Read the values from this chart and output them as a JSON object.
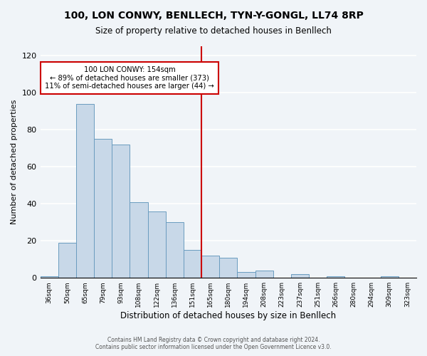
{
  "title": "100, LON CONWY, BENLLECH, TYN-Y-GONGL, LL74 8RP",
  "subtitle": "Size of property relative to detached houses in Benllech",
  "xlabel": "Distribution of detached houses by size in Benllech",
  "ylabel": "Number of detached properties",
  "bar_color": "#c8d8e8",
  "bar_edge_color": "#6a9cbf",
  "bins": [
    "36sqm",
    "50sqm",
    "65sqm",
    "79sqm",
    "93sqm",
    "108sqm",
    "122sqm",
    "136sqm",
    "151sqm",
    "165sqm",
    "180sqm",
    "194sqm",
    "208sqm",
    "223sqm",
    "237sqm",
    "251sqm",
    "266sqm",
    "280sqm",
    "294sqm",
    "309sqm",
    "323sqm"
  ],
  "values": [
    1,
    19,
    94,
    75,
    72,
    41,
    36,
    30,
    15,
    12,
    11,
    3,
    4,
    0,
    2,
    0,
    1,
    0,
    0,
    1
  ],
  "vline_label_index": 8,
  "vline_color": "#cc0000",
  "annotation_title": "100 LON CONWY: 154sqm",
  "annotation_line1": "← 89% of detached houses are smaller (373)",
  "annotation_line2": "11% of semi-detached houses are larger (44) →",
  "annotation_box_color": "#ffffff",
  "annotation_box_edge": "#cc0000",
  "ylim": [
    0,
    125
  ],
  "yticks": [
    0,
    20,
    40,
    60,
    80,
    100,
    120
  ],
  "footer1": "Contains HM Land Registry data © Crown copyright and database right 2024.",
  "footer2": "Contains public sector information licensed under the Open Government Licence v3.0.",
  "background_color": "#f0f4f8"
}
